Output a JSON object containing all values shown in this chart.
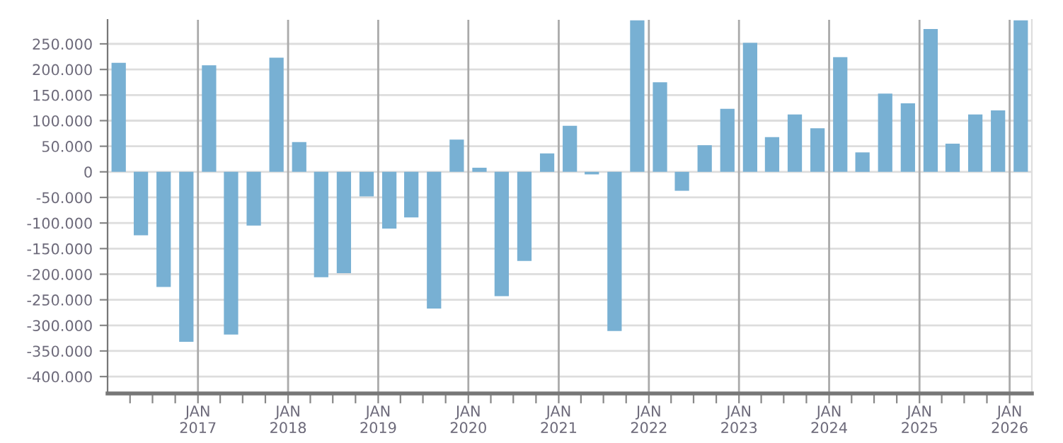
{
  "chart_data": {
    "type": "bar",
    "color": "#78b0d3",
    "grid": true,
    "x": [
      "2016-02-15",
      "2016-05-15",
      "2016-08-15",
      "2016-11-15",
      "2017-02-15",
      "2017-05-15",
      "2017-08-15",
      "2017-11-15",
      "2018-02-15",
      "2018-05-15",
      "2018-08-15",
      "2018-11-15",
      "2019-02-15",
      "2019-05-15",
      "2019-08-15",
      "2019-11-15",
      "2020-02-15",
      "2020-05-15",
      "2020-08-15",
      "2020-11-15",
      "2021-02-15",
      "2021-05-15",
      "2021-08-15",
      "2021-11-15",
      "2022-02-15",
      "2022-05-15",
      "2022-08-15",
      "2022-11-15",
      "2023-02-15",
      "2023-05-15",
      "2023-08-15",
      "2023-11-15",
      "2024-02-15",
      "2024-05-15",
      "2024-08-15",
      "2024-11-15",
      "2025-02-15",
      "2025-05-15",
      "2025-08-15",
      "2025-11-15",
      "2026-02-15"
    ],
    "values": [
      213000,
      -124000,
      -225000,
      -332000,
      208000,
      -318000,
      -105000,
      223000,
      58000,
      -206000,
      -198000,
      -48000,
      -111000,
      -89000,
      -267000,
      63000,
      8000,
      -243000,
      -174000,
      36000,
      90000,
      -5000,
      -311000,
      296000,
      175000,
      -37000,
      52000,
      123000,
      252000,
      68000,
      112000,
      85000,
      224000,
      38000,
      153000,
      134000,
      279000,
      55000,
      112000,
      120000,
      296000
    ],
    "xlim": [
      "2016-01-01",
      "2026-04-01"
    ],
    "xticks": [
      {
        "value": "2016-04-01",
        "label": null
      },
      {
        "value": "2016-07-01",
        "label": null
      },
      {
        "value": "2016-10-01",
        "label": null
      },
      {
        "value": "2017-01-01",
        "label": "JAN\n2017"
      },
      {
        "value": "2017-04-01",
        "label": null
      },
      {
        "value": "2017-07-01",
        "label": null
      },
      {
        "value": "2017-10-01",
        "label": null
      },
      {
        "value": "2018-01-01",
        "label": "JAN\n2018"
      },
      {
        "value": "2018-04-01",
        "label": null
      },
      {
        "value": "2018-07-01",
        "label": null
      },
      {
        "value": "2018-10-01",
        "label": null
      },
      {
        "value": "2019-01-01",
        "label": "JAN\n2019"
      },
      {
        "value": "2019-04-01",
        "label": null
      },
      {
        "value": "2019-07-01",
        "label": null
      },
      {
        "value": "2019-10-01",
        "label": null
      },
      {
        "value": "2020-01-01",
        "label": "JAN\n2020"
      },
      {
        "value": "2020-04-01",
        "label": null
      },
      {
        "value": "2020-07-01",
        "label": null
      },
      {
        "value": "2020-10-01",
        "label": null
      },
      {
        "value": "2021-01-01",
        "label": "JAN\n2021"
      },
      {
        "value": "2021-04-01",
        "label": null
      },
      {
        "value": "2021-07-01",
        "label": null
      },
      {
        "value": "2021-10-01",
        "label": null
      },
      {
        "value": "2022-01-01",
        "label": "JAN\n2022"
      },
      {
        "value": "2022-04-01",
        "label": null
      },
      {
        "value": "2022-07-01",
        "label": null
      },
      {
        "value": "2022-10-01",
        "label": null
      },
      {
        "value": "2023-01-01",
        "label": "JAN\n2023"
      },
      {
        "value": "2023-04-01",
        "label": null
      },
      {
        "value": "2023-07-01",
        "label": null
      },
      {
        "value": "2023-10-01",
        "label": null
      },
      {
        "value": "2024-01-01",
        "label": "JAN\n2024"
      },
      {
        "value": "2024-04-01",
        "label": null
      },
      {
        "value": "2024-07-01",
        "label": null
      },
      {
        "value": "2024-10-01",
        "label": null
      },
      {
        "value": "2025-01-01",
        "label": "JAN\n2025"
      },
      {
        "value": "2025-04-01",
        "label": null
      },
      {
        "value": "2025-07-01",
        "label": null
      },
      {
        "value": "2025-10-01",
        "label": null
      },
      {
        "value": "2026-01-01",
        "label": "JAN\n2026"
      }
    ],
    "ylim": [
      -433000,
      297000
    ],
    "yticks": [
      {
        "value": -400000,
        "label": "-400.000"
      },
      {
        "value": -350000,
        "label": "-350.000"
      },
      {
        "value": -300000,
        "label": "-300.000"
      },
      {
        "value": -250000,
        "label": "-250.000"
      },
      {
        "value": -200000,
        "label": "-200.000"
      },
      {
        "value": -150000,
        "label": "-150.000"
      },
      {
        "value": -100000,
        "label": "-100.000"
      },
      {
        "value": -50000,
        "label": "-50.000"
      },
      {
        "value": 0,
        "label": "0"
      },
      {
        "value": 50000,
        "label": "50.000"
      },
      {
        "value": 100000,
        "label": "100.000"
      },
      {
        "value": 150000,
        "label": "150.000"
      },
      {
        "value": 200000,
        "label": "200.000"
      },
      {
        "value": 250000,
        "label": "250.000"
      }
    ]
  }
}
